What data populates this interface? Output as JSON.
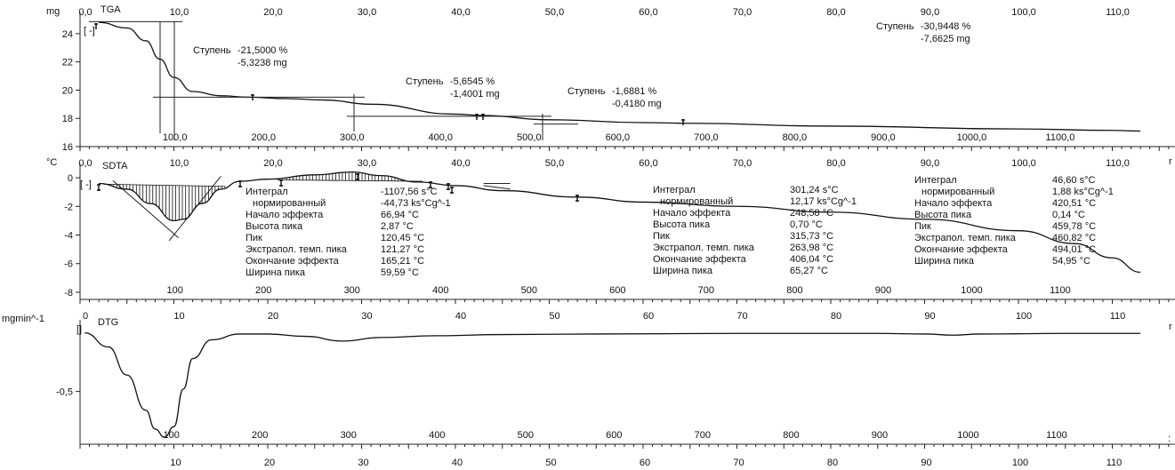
{
  "chart_data": [
    {
      "type": "line",
      "title": "TGA",
      "ylabel": "mg",
      "ylim": [
        16,
        25
      ],
      "yticks": [
        "16",
        "18",
        "20",
        "22",
        "24"
      ],
      "xticks_top": [
        "0,0",
        "10,0",
        "20,0",
        "30,0",
        "40,0",
        "50,0",
        "60,0",
        "70,0",
        "80,0",
        "90,0",
        "100,0",
        "110,0"
      ],
      "xticks_bottom": [
        "100,0",
        "200,0",
        "300,0",
        "400,0",
        "500,0",
        "600,0",
        "700,0",
        "800,0",
        "900,0",
        "1000,0",
        "1100,0"
      ],
      "x_time": [
        2,
        5,
        7,
        8.5,
        10,
        12,
        15,
        18,
        22,
        26,
        31,
        40,
        43,
        50,
        60,
        65,
        80,
        100,
        110,
        113
      ],
      "values": [
        24.8,
        24.4,
        23.5,
        22.2,
        20.9,
        19.9,
        19.6,
        19.5,
        19.4,
        19.3,
        19.0,
        18.3,
        18.2,
        17.9,
        17.7,
        17.65,
        17.45,
        17.25,
        17.15,
        17.1
      ],
      "steps": [
        {
          "label": "Ступень",
          "percent": "-21,5000 %",
          "mass": "-5,3238 mg"
        },
        {
          "label": "Ступень",
          "percent": "-5,6545 %",
          "mass": "-1,4001 mg"
        },
        {
          "label": "Ступень",
          "percent": "-1,6881 %",
          "mass": "-0,4180 mg"
        },
        {
          "label": "Ступень",
          "percent": "-30,9448 %",
          "mass": "-7,6625 mg"
        }
      ]
    },
    {
      "type": "line",
      "title": "SDTA",
      "ylabel": "°C",
      "ylim": [
        -8.5,
        0.5
      ],
      "yticks": [
        "0",
        "-2",
        "-4",
        "-6",
        "-8"
      ],
      "xticks_top": [
        "0,0",
        "10,0",
        "20,0",
        "30,0",
        "40,0",
        "50,0",
        "60,0",
        "70,0",
        "80,0",
        "90,0",
        "100,0",
        "110,0"
      ],
      "xticks_bottom": [
        "100",
        "200",
        "300",
        "400",
        "500",
        "600",
        "700",
        "800",
        "900",
        "1000",
        "1100"
      ],
      "x_time": [
        2,
        5,
        7.5,
        10,
        11,
        13,
        15,
        17,
        20,
        25,
        29,
        32,
        36,
        40,
        45,
        53,
        60,
        70,
        80,
        90,
        100,
        106,
        110,
        113
      ],
      "values": [
        -0.4,
        -0.8,
        -1.8,
        -3.0,
        -2.9,
        -1.8,
        -0.8,
        -0.25,
        -0.1,
        0.2,
        0.4,
        0.15,
        -0.3,
        -0.55,
        -0.9,
        -1.35,
        -1.7,
        -2.0,
        -2.4,
        -2.9,
        -3.7,
        -4.6,
        -5.6,
        -6.6
      ],
      "peaks": [
        {
          "Интеграл": "-1107,56 s°C",
          "нормированный": "-44,73 ks°Cg^-1",
          "Начало эффекта": "66,94 °C",
          "Высота пика": "2,87 °C",
          "Пик": "120,45 °C",
          "Экстрапол. темп. пика": "121,27 °C",
          "Окончание эффекта": "165,21 °C",
          "Ширина пика": "59,59 °C"
        },
        {
          "Интеграл": "301,24 s°C",
          "нормированный": "12,17 ks°Cg^-1",
          "Начало эффекта": "248,58 °C",
          "Высота пика": "0,70 °C",
          "Пик": "315,73 °C",
          "Экстрапол. темп. пика": "263,98 °C",
          "Окончание эффекта": "406,04 °C",
          "Ширина пика": "65,27 °C"
        },
        {
          "Интеграл": "46,60 s°C",
          "нормированный": "1,88 ks°Cg^-1",
          "Начало эффекта": "420,51 °C",
          "Высота пика": "0,14 °C",
          "Пик": "459,78 °C",
          "Экстрапол. темп. пика": "460,82 °C",
          "Окончание эффекта": "494,01 °C",
          "Ширина пика": "54,95 °C"
        }
      ]
    },
    {
      "type": "line",
      "title": "DTG",
      "ylabel": "mgmin^-1",
      "ylim": [
        -0.95,
        0.05
      ],
      "yticks": [
        "-0,5"
      ],
      "xticks_top": [
        "0",
        "10",
        "20",
        "30",
        "40",
        "50",
        "60",
        "70",
        "80",
        "90",
        "100",
        "110"
      ],
      "xticks_bottom": [
        "100",
        "200",
        "300",
        "400",
        "500",
        "600",
        "700",
        "800",
        "900",
        "1000",
        "1100"
      ],
      "xticks_axis": [
        "10",
        "20",
        "30",
        "40",
        "50",
        "60",
        "70",
        "80",
        "90",
        "100",
        "110"
      ],
      "x_time": [
        0.5,
        3,
        5,
        7,
        8,
        9,
        10,
        11,
        12,
        14,
        17,
        20,
        24,
        28,
        32,
        38,
        45,
        55,
        70,
        85,
        90,
        93,
        96,
        105,
        113
      ],
      "values": [
        0.0,
        -0.12,
        -0.36,
        -0.66,
        -0.82,
        -0.89,
        -0.8,
        -0.48,
        -0.22,
        -0.06,
        -0.01,
        -0.01,
        -0.03,
        -0.07,
        -0.04,
        -0.025,
        -0.015,
        -0.01,
        -0.005,
        -0.005,
        -0.01,
        -0.02,
        -0.01,
        -0.005,
        -0.005
      ]
    }
  ]
}
